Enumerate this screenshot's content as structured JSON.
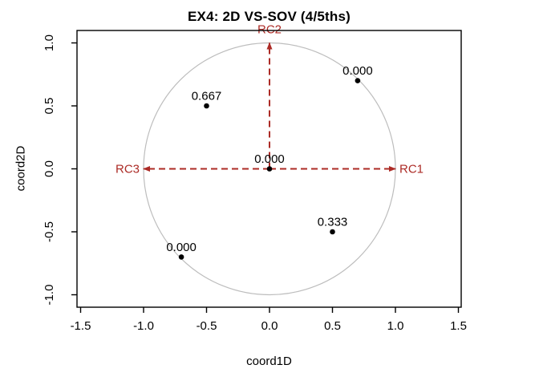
{
  "figure": {
    "title": "EX4: 2D VS-SOV (4/5ths)",
    "xlabel": "coord1D",
    "ylabel": "coord2D"
  },
  "colors": {
    "arrow": "#AC2B26",
    "circle_outline": "#BDBDBD",
    "point": "#000000",
    "axis": "#000000",
    "text": "#000000",
    "background": "#FFFFFF"
  },
  "chart_data": {
    "type": "scatter",
    "title": "EX4: 2D VS-SOV (4/5ths)",
    "xlabel": "coord1D",
    "ylabel": "coord2D",
    "xlim": [
      -1.5,
      1.5
    ],
    "ylim": [
      -1,
      1
    ],
    "x_tick_values": [
      -1.5,
      -1.0,
      -0.5,
      0.0,
      0.5,
      1.0,
      1.5
    ],
    "x_tick_labels": [
      "-1.5",
      "-1.0",
      "-0.5",
      "0.0",
      "0.5",
      "1.0",
      "1.5"
    ],
    "y_tick_values": [
      -1.0,
      -0.5,
      0.0,
      0.5,
      1.0
    ],
    "y_tick_labels": [
      "-1.0",
      "-0.5",
      "0.0",
      "0.5",
      "1.0"
    ],
    "grid": false,
    "legend": null,
    "unit_circle": {
      "radius": 1.0
    },
    "points": [
      {
        "x": 0.7,
        "y": 0.7,
        "label": "0.000"
      },
      {
        "x": -0.5,
        "y": 0.5,
        "label": "0.667"
      },
      {
        "x": 0.0,
        "y": 0.0,
        "label": "0.000"
      },
      {
        "x": 0.5,
        "y": -0.5,
        "label": "0.333"
      },
      {
        "x": -0.7,
        "y": -0.7,
        "label": "0.000"
      }
    ],
    "arrows": [
      {
        "name": "RC1",
        "from": [
          0,
          0
        ],
        "to": [
          1,
          0
        ],
        "label_side": "right"
      },
      {
        "name": "RC2",
        "from": [
          0,
          0
        ],
        "to": [
          0,
          1
        ],
        "label_side": "top"
      },
      {
        "name": "RC3",
        "from": [
          0,
          0
        ],
        "to": [
          -1,
          0
        ],
        "label_side": "left"
      }
    ]
  }
}
